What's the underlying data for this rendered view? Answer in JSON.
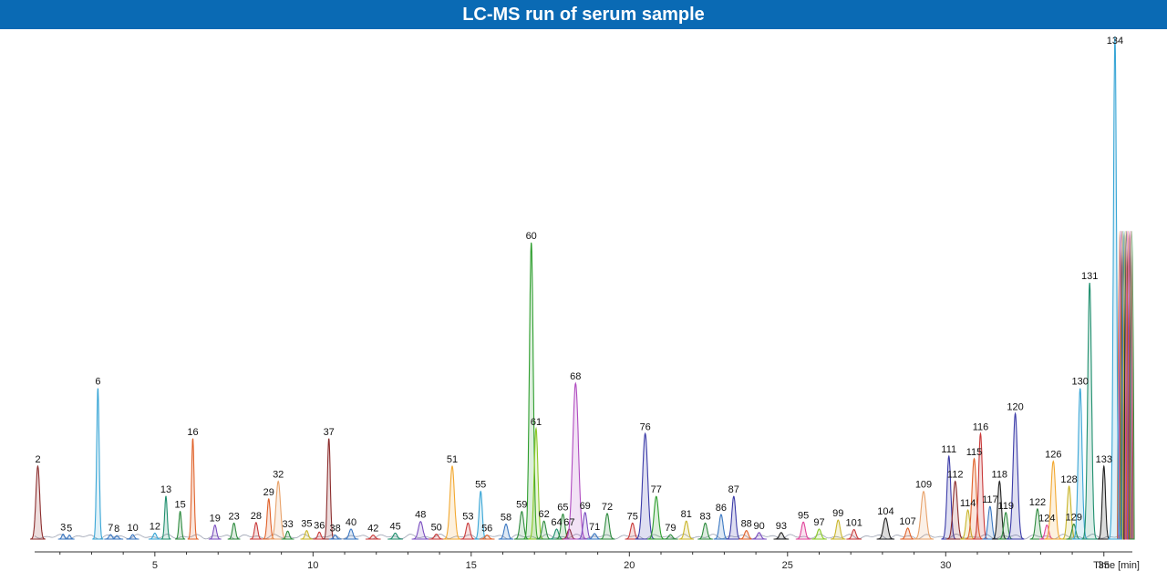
{
  "title": "LC-MS run of serum sample",
  "chart_data": {
    "type": "line",
    "title": "LC-MS run of serum sample",
    "xlabel": "Time [min]",
    "ylabel": "",
    "xlim": [
      1.2,
      35.9
    ],
    "ylim": [
      0,
      100
    ],
    "grid": false,
    "x_ticks": [
      5,
      10,
      15,
      20,
      25,
      30,
      35
    ],
    "peak_count": 134,
    "peaks": [
      {
        "label": "2",
        "rt": 1.3,
        "h": 14.5,
        "w": 0.06,
        "color": "#8c2d2d"
      },
      {
        "label": "3",
        "rt": 2.1,
        "h": 1.0,
        "w": 0.04,
        "color": "#3b78c2"
      },
      {
        "label": "5",
        "rt": 2.3,
        "h": 0.8,
        "w": 0.04,
        "color": "#3b78c2"
      },
      {
        "label": "6",
        "rt": 3.2,
        "h": 30.0,
        "w": 0.04,
        "color": "#3aa6d6"
      },
      {
        "label": "7",
        "rt": 3.6,
        "h": 0.9,
        "w": 0.05,
        "color": "#3b78c2"
      },
      {
        "label": "8",
        "rt": 3.8,
        "h": 0.7,
        "w": 0.05,
        "color": "#3b78c2"
      },
      {
        "label": "10",
        "rt": 4.3,
        "h": 0.9,
        "w": 0.05,
        "color": "#3b78c2"
      },
      {
        "label": "12",
        "rt": 5.0,
        "h": 1.2,
        "w": 0.05,
        "color": "#3aa6d6"
      },
      {
        "label": "13",
        "rt": 5.35,
        "h": 8.5,
        "w": 0.04,
        "color": "#1f8f6e"
      },
      {
        "label": "15",
        "rt": 5.8,
        "h": 5.5,
        "w": 0.04,
        "color": "#2e8b3e"
      },
      {
        "label": "16",
        "rt": 6.2,
        "h": 20.0,
        "w": 0.04,
        "color": "#e0622a"
      },
      {
        "label": "19",
        "rt": 6.9,
        "h": 2.8,
        "w": 0.05,
        "color": "#7b4ec0"
      },
      {
        "label": "23",
        "rt": 7.5,
        "h": 3.2,
        "w": 0.05,
        "color": "#2e8b3e"
      },
      {
        "label": "28",
        "rt": 8.2,
        "h": 3.3,
        "w": 0.05,
        "color": "#c93a3a"
      },
      {
        "label": "29",
        "rt": 8.6,
        "h": 8.0,
        "w": 0.05,
        "color": "#e0622a"
      },
      {
        "label": "32",
        "rt": 8.9,
        "h": 11.5,
        "w": 0.07,
        "color": "#e8a26a"
      },
      {
        "label": "33",
        "rt": 9.2,
        "h": 1.6,
        "w": 0.05,
        "color": "#2e8b3e"
      },
      {
        "label": "35",
        "rt": 9.8,
        "h": 1.7,
        "w": 0.05,
        "color": "#c9b52a"
      },
      {
        "label": "36",
        "rt": 10.2,
        "h": 1.4,
        "w": 0.05,
        "color": "#c93a3a"
      },
      {
        "label": "37",
        "rt": 10.5,
        "h": 20.0,
        "w": 0.045,
        "color": "#8c2d2d"
      },
      {
        "label": "38",
        "rt": 10.7,
        "h": 0.8,
        "w": 0.05,
        "color": "#3b78c2"
      },
      {
        "label": "40",
        "rt": 11.2,
        "h": 2.0,
        "w": 0.06,
        "color": "#3b78c2"
      },
      {
        "label": "42",
        "rt": 11.9,
        "h": 0.8,
        "w": 0.06,
        "color": "#c93a3a"
      },
      {
        "label": "45",
        "rt": 12.6,
        "h": 1.2,
        "w": 0.06,
        "color": "#1f8f6e"
      },
      {
        "label": "48",
        "rt": 13.4,
        "h": 3.5,
        "w": 0.07,
        "color": "#7b4ec0"
      },
      {
        "label": "50",
        "rt": 13.9,
        "h": 1.0,
        "w": 0.06,
        "color": "#c93a3a"
      },
      {
        "label": "51",
        "rt": 14.4,
        "h": 14.5,
        "w": 0.07,
        "color": "#f2a830"
      },
      {
        "label": "53",
        "rt": 14.9,
        "h": 3.2,
        "w": 0.06,
        "color": "#c93a3a"
      },
      {
        "label": "55",
        "rt": 15.3,
        "h": 9.5,
        "w": 0.05,
        "color": "#3aa6d6"
      },
      {
        "label": "56",
        "rt": 15.5,
        "h": 0.8,
        "w": 0.06,
        "color": "#e0622a"
      },
      {
        "label": "58",
        "rt": 16.1,
        "h": 3.0,
        "w": 0.06,
        "color": "#3b78c2"
      },
      {
        "label": "59",
        "rt": 16.6,
        "h": 5.5,
        "w": 0.06,
        "color": "#2e8b3e"
      },
      {
        "label": "60",
        "rt": 16.9,
        "h": 59.0,
        "w": 0.06,
        "color": "#2e9e2e"
      },
      {
        "label": "61",
        "rt": 17.05,
        "h": 22.0,
        "w": 0.06,
        "color": "#8ac926"
      },
      {
        "label": "62",
        "rt": 17.3,
        "h": 3.6,
        "w": 0.06,
        "color": "#2e8b3e"
      },
      {
        "label": "64",
        "rt": 17.7,
        "h": 2.0,
        "w": 0.06,
        "color": "#1f8f6e"
      },
      {
        "label": "65",
        "rt": 17.9,
        "h": 5.0,
        "w": 0.06,
        "color": "#2e8b3e"
      },
      {
        "label": "67",
        "rt": 18.1,
        "h": 2.0,
        "w": 0.06,
        "color": "#8c2d2d"
      },
      {
        "label": "68",
        "rt": 18.3,
        "h": 31.0,
        "w": 0.09,
        "color": "#b04bc0"
      },
      {
        "label": "69",
        "rt": 18.6,
        "h": 5.3,
        "w": 0.06,
        "color": "#7b4ec0"
      },
      {
        "label": "71",
        "rt": 18.9,
        "h": 1.1,
        "w": 0.06,
        "color": "#3b78c2"
      },
      {
        "label": "72",
        "rt": 19.3,
        "h": 5.1,
        "w": 0.06,
        "color": "#2e8b3e"
      },
      {
        "label": "75",
        "rt": 20.1,
        "h": 3.2,
        "w": 0.06,
        "color": "#c93a3a"
      },
      {
        "label": "76",
        "rt": 20.5,
        "h": 21.0,
        "w": 0.08,
        "color": "#3b3ba8"
      },
      {
        "label": "77",
        "rt": 20.85,
        "h": 8.5,
        "w": 0.07,
        "color": "#2e9e2e"
      },
      {
        "label": "79",
        "rt": 21.3,
        "h": 0.9,
        "w": 0.06,
        "color": "#2e8b3e"
      },
      {
        "label": "81",
        "rt": 21.8,
        "h": 3.6,
        "w": 0.06,
        "color": "#c9b52a"
      },
      {
        "label": "83",
        "rt": 22.4,
        "h": 3.2,
        "w": 0.06,
        "color": "#2e8b3e"
      },
      {
        "label": "86",
        "rt": 22.9,
        "h": 4.9,
        "w": 0.06,
        "color": "#3b78c2"
      },
      {
        "label": "87",
        "rt": 23.3,
        "h": 8.5,
        "w": 0.06,
        "color": "#3b3ba8"
      },
      {
        "label": "88",
        "rt": 23.7,
        "h": 1.7,
        "w": 0.06,
        "color": "#e0622a"
      },
      {
        "label": "90",
        "rt": 24.1,
        "h": 1.3,
        "w": 0.06,
        "color": "#7b4ec0"
      },
      {
        "label": "93",
        "rt": 24.8,
        "h": 1.3,
        "w": 0.06,
        "color": "#222222"
      },
      {
        "label": "95",
        "rt": 25.5,
        "h": 3.4,
        "w": 0.06,
        "color": "#e0449a"
      },
      {
        "label": "97",
        "rt": 26.0,
        "h": 2.0,
        "w": 0.06,
        "color": "#8ac926"
      },
      {
        "label": "99",
        "rt": 26.6,
        "h": 3.8,
        "w": 0.06,
        "color": "#c9b52a"
      },
      {
        "label": "101",
        "rt": 27.1,
        "h": 1.9,
        "w": 0.06,
        "color": "#c93a3a"
      },
      {
        "label": "104",
        "rt": 28.1,
        "h": 4.2,
        "w": 0.07,
        "color": "#222222"
      },
      {
        "label": "107",
        "rt": 28.8,
        "h": 2.2,
        "w": 0.06,
        "color": "#e0622a"
      },
      {
        "label": "109",
        "rt": 29.3,
        "h": 9.5,
        "w": 0.08,
        "color": "#e8a26a"
      },
      {
        "label": "111",
        "rt": 30.1,
        "h": 16.5,
        "w": 0.06,
        "color": "#3b3ba8"
      },
      {
        "label": "112",
        "rt": 30.3,
        "h": 11.5,
        "w": 0.07,
        "color": "#8c2d2d"
      },
      {
        "label": "114",
        "rt": 30.7,
        "h": 5.8,
        "w": 0.06,
        "color": "#c9b52a"
      },
      {
        "label": "115",
        "rt": 30.9,
        "h": 16.0,
        "w": 0.07,
        "color": "#e0622a"
      },
      {
        "label": "116",
        "rt": 31.1,
        "h": 21.0,
        "w": 0.06,
        "color": "#c93a3a"
      },
      {
        "label": "117",
        "rt": 31.4,
        "h": 6.5,
        "w": 0.06,
        "color": "#3b78c2"
      },
      {
        "label": "118",
        "rt": 31.7,
        "h": 11.5,
        "w": 0.06,
        "color": "#222222"
      },
      {
        "label": "119",
        "rt": 31.9,
        "h": 5.3,
        "w": 0.06,
        "color": "#2e8b3e"
      },
      {
        "label": "120",
        "rt": 32.2,
        "h": 25.0,
        "w": 0.07,
        "color": "#3b3ba8"
      },
      {
        "label": "122",
        "rt": 32.9,
        "h": 6.0,
        "w": 0.06,
        "color": "#2e8b3e"
      },
      {
        "label": "124",
        "rt": 33.2,
        "h": 2.8,
        "w": 0.06,
        "color": "#e0449a"
      },
      {
        "label": "126",
        "rt": 33.4,
        "h": 15.5,
        "w": 0.07,
        "color": "#f2a830"
      },
      {
        "label": "128",
        "rt": 33.9,
        "h": 10.5,
        "w": 0.06,
        "color": "#c9b52a"
      },
      {
        "label": "129",
        "rt": 34.05,
        "h": 3.0,
        "w": 0.06,
        "color": "#2e8b3e"
      },
      {
        "label": "130",
        "rt": 34.25,
        "h": 30.0,
        "w": 0.06,
        "color": "#3aa6d6"
      },
      {
        "label": "131",
        "rt": 34.55,
        "h": 51.0,
        "w": 0.06,
        "color": "#1f8f6e"
      },
      {
        "label": "133",
        "rt": 35.0,
        "h": 14.5,
        "w": 0.05,
        "color": "#222222"
      },
      {
        "label": "134",
        "rt": 35.35,
        "h": 100.0,
        "w": 0.05,
        "color": "#3aa6d6"
      }
    ],
    "saturated_region": {
      "from": 35.5,
      "to": 35.9,
      "note_colors": [
        "#e0622a",
        "#7b4ec0",
        "#c93a3a",
        "#2e8b3e",
        "#3b78c2",
        "#c9b52a",
        "#222222",
        "#e0449a"
      ]
    }
  }
}
